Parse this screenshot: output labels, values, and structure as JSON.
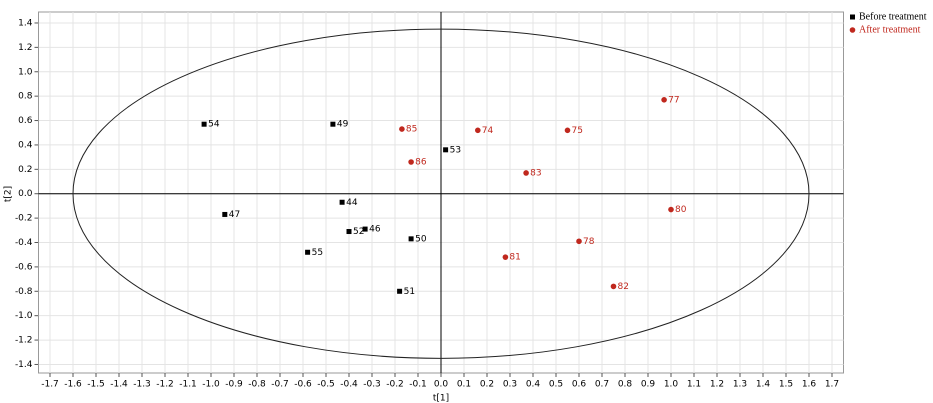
{
  "chart_data": {
    "type": "scatter",
    "xlabel": "t[1]",
    "ylabel": "t[2]",
    "xlim": [
      -1.75,
      1.75
    ],
    "ylim": [
      -1.47,
      1.49
    ],
    "xticks": [
      -1.7,
      -1.6,
      -1.5,
      -1.4,
      -1.3,
      -1.2,
      -1.1,
      {
        "value": -1,
        "label": "-1.0"
      },
      -0.9,
      -0.8,
      -0.7,
      -0.6,
      -0.5,
      -0.4,
      -0.3,
      -0.2,
      -0.1,
      {
        "value": 0,
        "label": "0.0"
      },
      0.1,
      0.2,
      0.3,
      0.4,
      0.5,
      0.6,
      0.7,
      0.8,
      0.9,
      {
        "value": 1,
        "label": "1.0"
      },
      1.1,
      1.2,
      1.3,
      1.4,
      1.5,
      1.6,
      1.7
    ],
    "yticks": [
      -1.4,
      -1.2,
      {
        "value": -1,
        "label": "-1.0"
      },
      -0.8,
      -0.6,
      -0.4,
      -0.2,
      {
        "value": 0,
        "label": "0.0"
      },
      0.2,
      0.4,
      0.6,
      0.8,
      {
        "value": 1,
        "label": "1.0"
      },
      1.2,
      1.4
    ],
    "grid": true,
    "legend": "top-right",
    "ellipse": {
      "rx": 1.6,
      "ry": 1.35
    },
    "series": [
      {
        "name": "Before treatment",
        "color": "#000000",
        "marker": "square",
        "labels": [
          "54",
          "49",
          "53",
          "44",
          "47",
          "52",
          "46",
          "50",
          "55",
          "51"
        ],
        "x": [
          -1.03,
          -0.47,
          0.02,
          -0.43,
          -0.94,
          -0.4,
          -0.33,
          -0.13,
          -0.58,
          -0.18
        ],
        "y": [
          0.57,
          0.57,
          0.36,
          -0.07,
          -0.17,
          -0.31,
          -0.29,
          -0.37,
          -0.48,
          -0.8
        ]
      },
      {
        "name": "After treatment",
        "color": "#c0281e",
        "marker": "circle",
        "labels": [
          "77",
          "85",
          "74",
          "75",
          "86",
          "83",
          "80",
          "78",
          "81",
          "82"
        ],
        "x": [
          0.97,
          -0.17,
          0.16,
          0.55,
          -0.13,
          0.37,
          1.0,
          0.6,
          0.28,
          0.75
        ],
        "y": [
          0.77,
          0.53,
          0.52,
          0.52,
          0.26,
          0.17,
          -0.13,
          -0.39,
          -0.52,
          -0.76
        ]
      }
    ]
  }
}
